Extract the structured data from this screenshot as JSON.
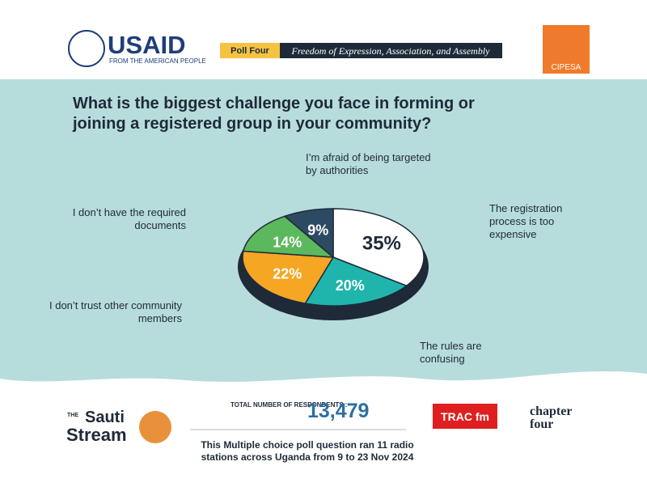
{
  "header": {
    "logo": "USAID",
    "tagline": "FROM THE AMERICAN PEOPLE",
    "poll": "Poll Four",
    "theme": "Freedom of Expression, Association, and Assembly",
    "partner": "CIPESA"
  },
  "chart_data": {
    "type": "pie",
    "title": "What is the biggest challenge you face in forming or joining a registered group in your community?",
    "categories": [
      "The registration process is too expensive",
      "The rules are confusing",
      "I don’t trust other community members",
      "I don’t have the required documents",
      "I’m afraid of being targeted by authorities"
    ],
    "values": [
      35,
      20,
      22,
      14,
      9
    ],
    "value_labels": [
      "35%",
      "20%",
      "22%",
      "14%",
      "9%"
    ],
    "colors": [
      "#ffffff",
      "#1fb5ad",
      "#f5a623",
      "#5cb85c",
      "#2d4a63"
    ]
  },
  "footer": {
    "respondents_label": "TOTAL NUMBER OF RESPONDENTS :",
    "respondents": "13,479",
    "note": "This Multiple choice poll question ran 11 radio stations across Uganda from 9 to 23 Nov 2024",
    "logo_the": "THE",
    "logo_sauti": "Sauti",
    "logo_stream": "Stream",
    "logo_trac": "TRAC fm",
    "logo_chapter": "chapter",
    "logo_four": "four"
  }
}
